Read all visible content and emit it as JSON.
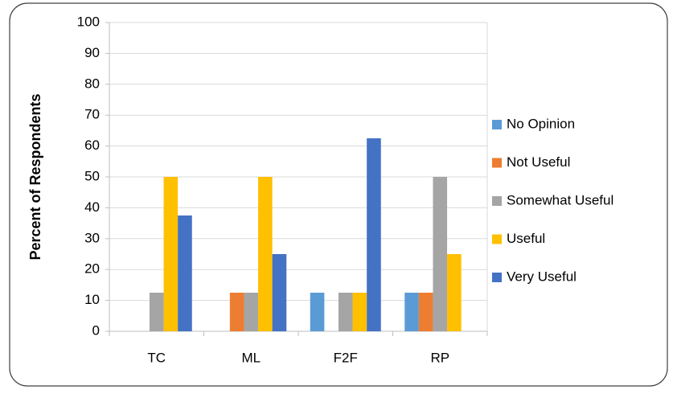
{
  "chart_data": {
    "type": "bar",
    "ylabel": "Percent of Respondents",
    "categories": [
      "TC",
      "ML",
      "F2F",
      "RP"
    ],
    "series": [
      {
        "name": "No Opinion",
        "color": "#5b9bd5",
        "values": [
          0,
          0,
          12.5,
          12.5
        ]
      },
      {
        "name": "Not Useful",
        "color": "#ed7d31",
        "values": [
          0,
          12.5,
          0,
          12.5
        ]
      },
      {
        "name": "Somewhat Useful",
        "color": "#a5a5a5",
        "values": [
          12.5,
          12.5,
          12.5,
          50
        ]
      },
      {
        "name": "Useful",
        "color": "#ffc000",
        "values": [
          50,
          50,
          12.5,
          25
        ]
      },
      {
        "name": "Very Useful",
        "color": "#4472c4",
        "values": [
          37.5,
          25,
          62.5,
          0
        ]
      }
    ],
    "ylim": [
      0,
      100
    ],
    "yticks": [
      0,
      10,
      20,
      30,
      40,
      50,
      60,
      70,
      80,
      90,
      100
    ],
    "grid": true,
    "legend": "right"
  }
}
